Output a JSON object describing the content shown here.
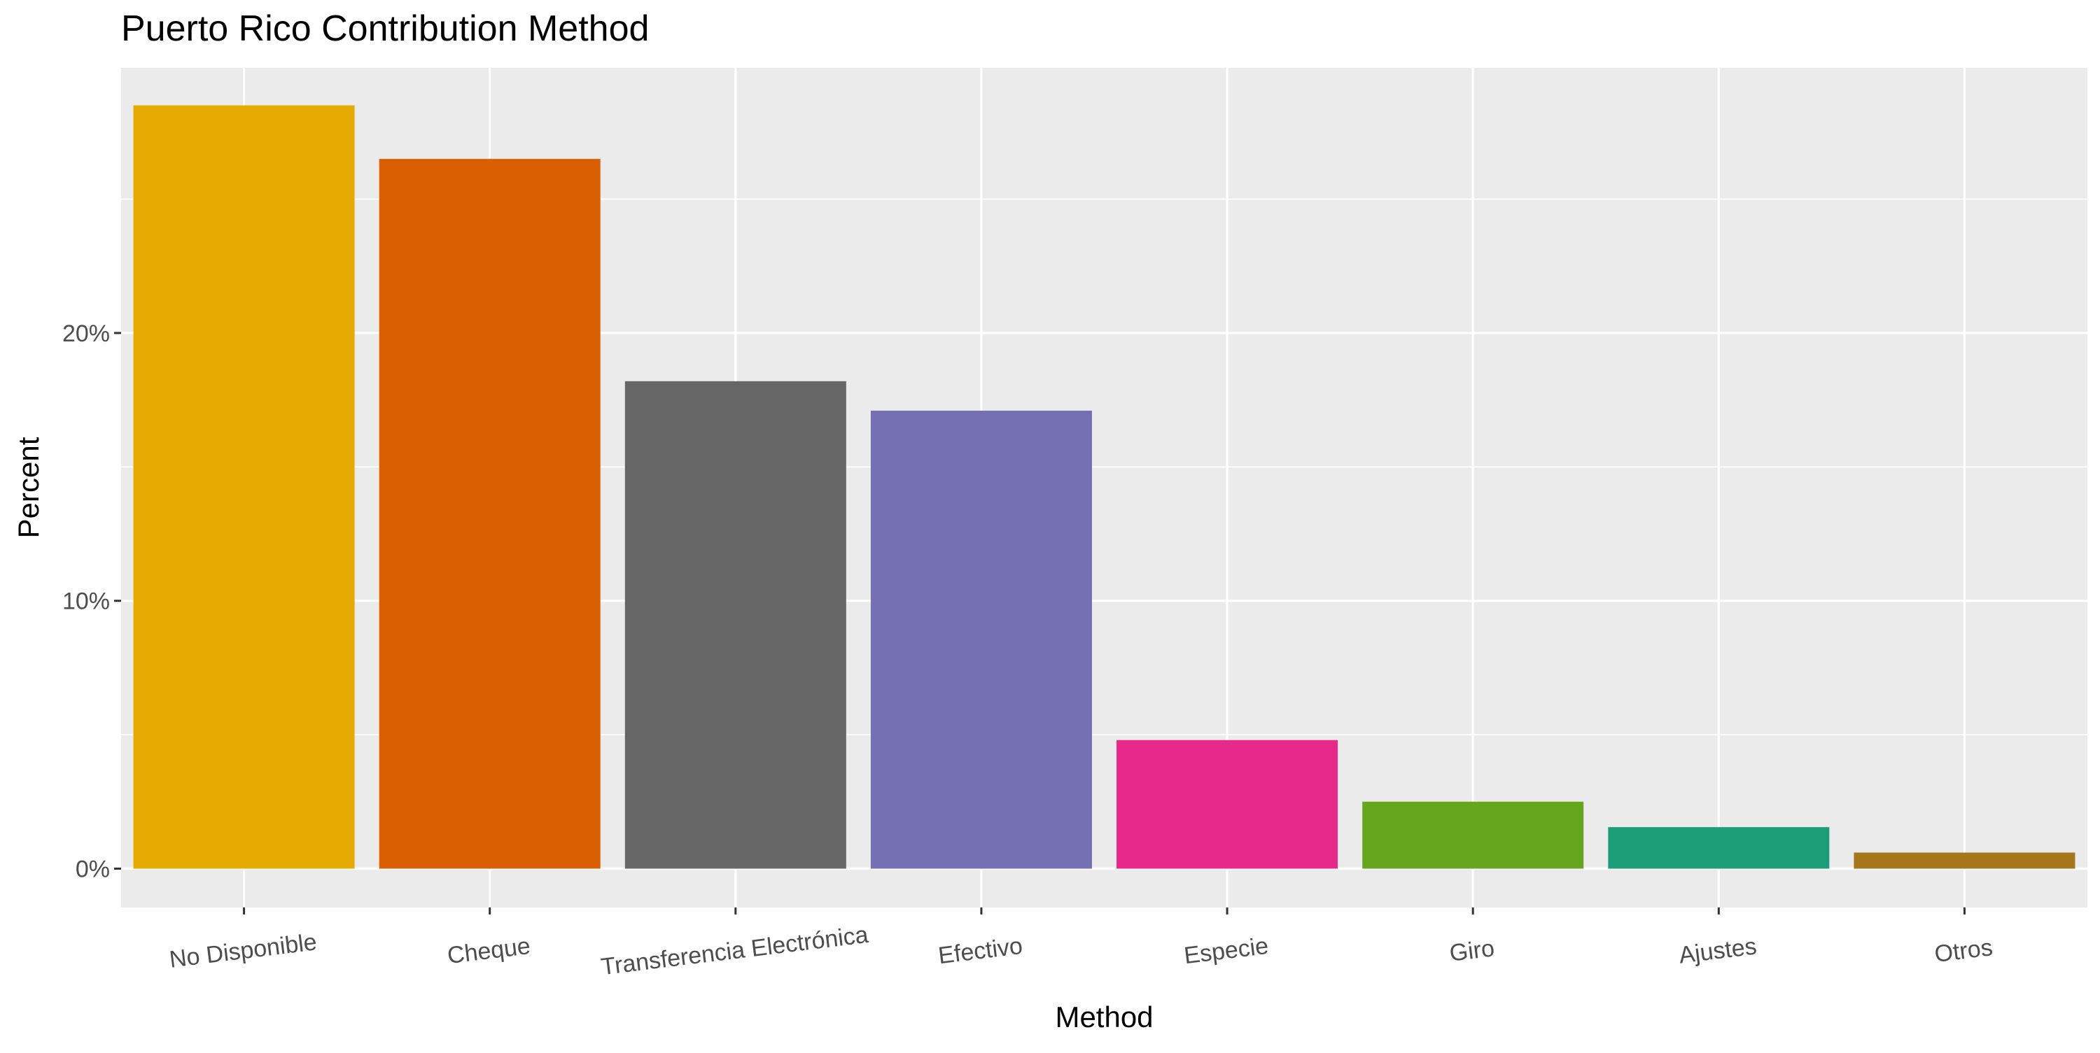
{
  "chart_data": {
    "type": "bar",
    "title": "Puerto Rico Contribution Method",
    "xlabel": "Method",
    "ylabel": "Percent",
    "categories": [
      "No Disponible",
      "Cheque",
      "Transferencia Electrónica",
      "Efectivo",
      "Especie",
      "Giro",
      "Ajustes",
      "Otros"
    ],
    "values": [
      28.5,
      26.5,
      18.2,
      17.1,
      4.8,
      2.5,
      1.55,
      0.6
    ],
    "colors": [
      "#E6AB02",
      "#D95F02",
      "#666666",
      "#7570B3",
      "#E7298A",
      "#66A61E",
      "#1B9E77",
      "#A6761D"
    ],
    "ylim": [
      -1.45,
      29.9
    ],
    "yticks": [
      0,
      10,
      20
    ],
    "ytick_labels": [
      "0%",
      "10%",
      "20%"
    ],
    "grid": true,
    "legend": "none",
    "panel_background": "#EBEBEB"
  }
}
